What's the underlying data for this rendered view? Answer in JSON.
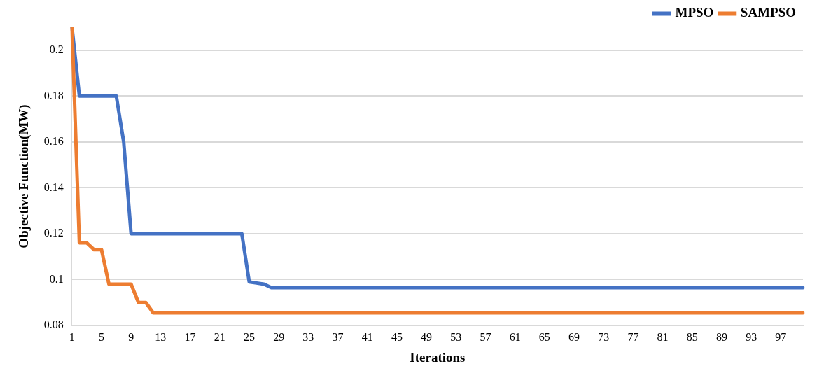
{
  "chart_data": {
    "type": "line",
    "xlabel": "Iterations",
    "ylabel": "Objective Function(MW)",
    "categories": [
      "1",
      null,
      null,
      null,
      "5",
      null,
      null,
      null,
      "9",
      null,
      null,
      null,
      "13",
      null,
      null,
      null,
      "17",
      null,
      null,
      null,
      "21",
      null,
      null,
      null,
      "25",
      null,
      null,
      null,
      "29",
      null,
      null,
      null,
      "33",
      null,
      null,
      null,
      "37",
      null,
      null,
      null,
      "41",
      null,
      null,
      null,
      "45",
      null,
      null,
      null,
      "49",
      null,
      null,
      null,
      "53",
      null,
      null,
      null,
      "57",
      null,
      null,
      null,
      "61",
      null,
      null,
      null,
      "65",
      null,
      null,
      null,
      "69",
      null,
      null,
      null,
      "73",
      null,
      null,
      null,
      "77",
      null,
      null,
      null,
      "81",
      null,
      null,
      null,
      "85",
      null,
      null,
      null,
      "89",
      null,
      null,
      null,
      "93",
      null,
      null,
      null,
      "97",
      null,
      null,
      null
    ],
    "series": [
      {
        "name": "MPSO",
        "color": "#4472c4",
        "values": [
          0.21,
          0.18,
          0.18,
          0.18,
          0.18,
          0.18,
          0.18,
          0.16,
          0.12,
          0.12,
          0.12,
          0.12,
          0.12,
          0.12,
          0.12,
          0.12,
          0.12,
          0.12,
          0.12,
          0.12,
          0.12,
          0.12,
          0.12,
          0.12,
          0.099,
          0.0985,
          0.098,
          0.0965,
          0.0965,
          0.0965,
          0.0965,
          0.0965,
          0.0965,
          0.0965,
          0.0965,
          0.0965,
          0.0965,
          0.0965,
          0.0965,
          0.0965,
          0.0965,
          0.0965,
          0.0965,
          0.0965,
          0.0965,
          0.0965,
          0.0965,
          0.0965,
          0.0965,
          0.0965,
          0.0965,
          0.0965,
          0.0965,
          0.0965,
          0.0965,
          0.0965,
          0.0965,
          0.0965,
          0.0965,
          0.0965,
          0.0965,
          0.0965,
          0.0965,
          0.0965,
          0.0965,
          0.0965,
          0.0965,
          0.0965,
          0.0965,
          0.0965,
          0.0965,
          0.0965,
          0.0965,
          0.0965,
          0.0965,
          0.0965,
          0.0965,
          0.0965,
          0.0965,
          0.0965,
          0.0965,
          0.0965,
          0.0965,
          0.0965,
          0.0965,
          0.0965,
          0.0965,
          0.0965,
          0.0965,
          0.0965,
          0.0965,
          0.0965,
          0.0965,
          0.0965,
          0.0965,
          0.0965,
          0.0965,
          0.0965,
          0.0965,
          0.0965
        ]
      },
      {
        "name": "SAMPSO",
        "color": "#ed7d31",
        "values": [
          0.21,
          0.116,
          0.116,
          0.113,
          0.113,
          0.098,
          0.098,
          0.098,
          0.098,
          0.09,
          0.09,
          0.0855,
          0.0855,
          0.0855,
          0.0855,
          0.0855,
          0.0855,
          0.0855,
          0.0855,
          0.0855,
          0.0855,
          0.0855,
          0.0855,
          0.0855,
          0.0855,
          0.0855,
          0.0855,
          0.0855,
          0.0855,
          0.0855,
          0.0855,
          0.0855,
          0.0855,
          0.0855,
          0.0855,
          0.0855,
          0.0855,
          0.0855,
          0.0855,
          0.0855,
          0.0855,
          0.0855,
          0.0855,
          0.0855,
          0.0855,
          0.0855,
          0.0855,
          0.0855,
          0.0855,
          0.0855,
          0.0855,
          0.0855,
          0.0855,
          0.0855,
          0.0855,
          0.0855,
          0.0855,
          0.0855,
          0.0855,
          0.0855,
          0.0855,
          0.0855,
          0.0855,
          0.0855,
          0.0855,
          0.0855,
          0.0855,
          0.0855,
          0.0855,
          0.0855,
          0.0855,
          0.0855,
          0.0855,
          0.0855,
          0.0855,
          0.0855,
          0.0855,
          0.0855,
          0.0855,
          0.0855,
          0.0855,
          0.0855,
          0.0855,
          0.0855,
          0.0855,
          0.0855,
          0.0855,
          0.0855,
          0.0855,
          0.0855,
          0.0855,
          0.0855,
          0.0855,
          0.0855,
          0.0855,
          0.0855,
          0.0855,
          0.0855,
          0.0855,
          0.0855
        ]
      }
    ],
    "ylim": [
      0.08,
      0.21
    ],
    "yticks": [
      0.08,
      0.1,
      0.12,
      0.14,
      0.16,
      0.18,
      0.2
    ],
    "grid": "y",
    "legend": "top right",
    "marker": "none",
    "line_style": "solid"
  }
}
